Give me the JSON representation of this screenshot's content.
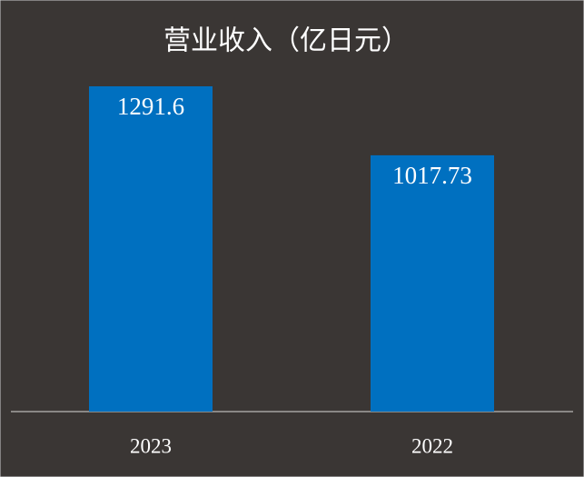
{
  "chart_data": {
    "type": "bar",
    "title": "营业收入（亿日元）",
    "categories": [
      "2023",
      "2022"
    ],
    "values": [
      1291.6,
      1017.73
    ],
    "color": "#0070c0",
    "data_labels": true
  }
}
